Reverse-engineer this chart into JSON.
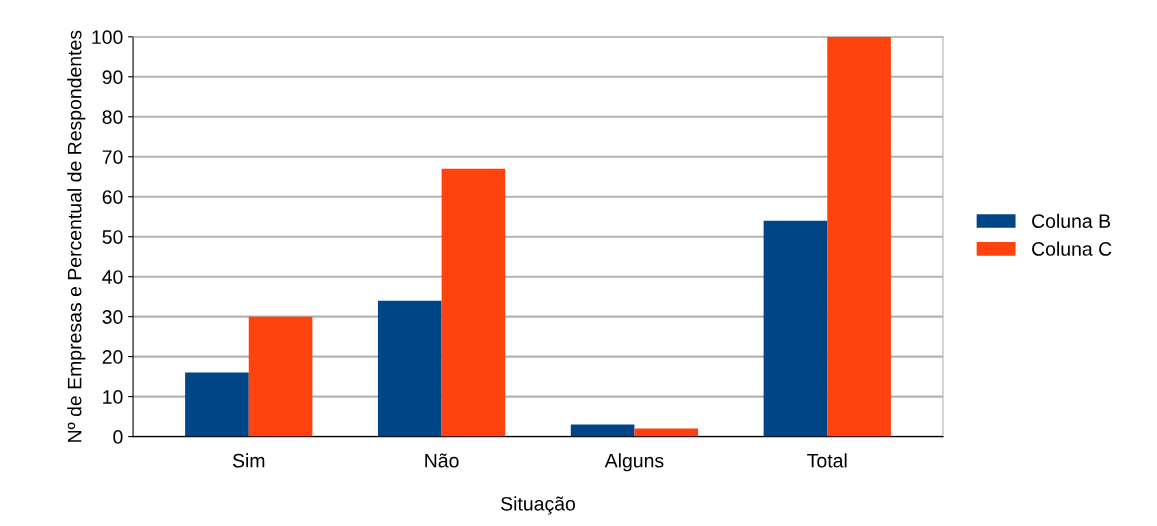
{
  "chart_data": {
    "type": "bar",
    "xlabel": "Situação",
    "ylabel": "Nº de Empresas e Percentual de Respondentes",
    "categories": [
      "Sim",
      "Não",
      "Alguns",
      "Total"
    ],
    "series": [
      {
        "name": "Coluna B",
        "color": "#004586",
        "values": [
          16,
          34,
          3,
          54
        ]
      },
      {
        "name": "Coluna C",
        "color": "#ff420e",
        "values": [
          30,
          67,
          2,
          100
        ]
      }
    ],
    "ylim": [
      0,
      100
    ],
    "yticks": [
      0,
      10,
      20,
      30,
      40,
      50,
      60,
      70,
      80,
      90,
      100
    ],
    "grid": "y",
    "legend": "right"
  }
}
